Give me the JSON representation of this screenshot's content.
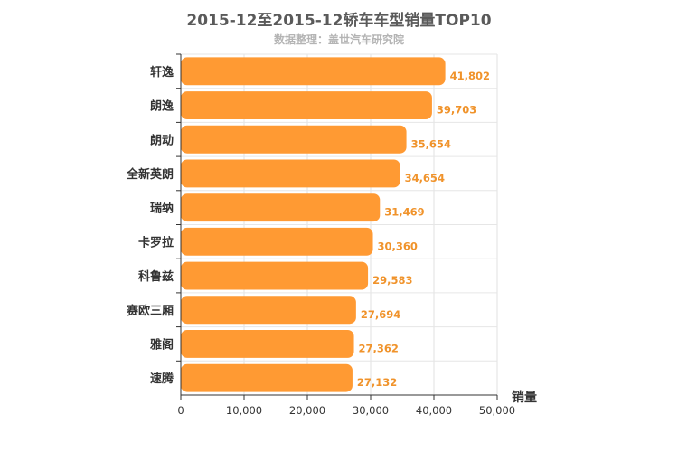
{
  "chart_data": {
    "type": "bar",
    "orientation": "horizontal",
    "title": "2015-12至2015-12轿车车型销量TOP10",
    "subtitle": "数据整理：盖世汽车研究院",
    "xlabel": "销量",
    "ylabel": "",
    "xlim": [
      0,
      50000
    ],
    "xticks": [
      "0",
      "10,000",
      "20,000",
      "30,000",
      "40,000",
      "50,000"
    ],
    "categories": [
      "轩逸",
      "朗逸",
      "朗动",
      "全新英朗",
      "瑞纳",
      "卡罗拉",
      "科鲁兹",
      "赛欧三厢",
      "雅阁",
      "速腾"
    ],
    "values": [
      41802,
      39703,
      35654,
      34654,
      31469,
      30360,
      29583,
      27694,
      27362,
      27132
    ],
    "value_labels": [
      "41,802",
      "39,703",
      "35,654",
      "34,654",
      "31,469",
      "30,360",
      "29,583",
      "27,694",
      "27,362",
      "27,132"
    ],
    "bar_color": "#ff9a33",
    "value_label_color": "#f0932b",
    "grid": true
  }
}
